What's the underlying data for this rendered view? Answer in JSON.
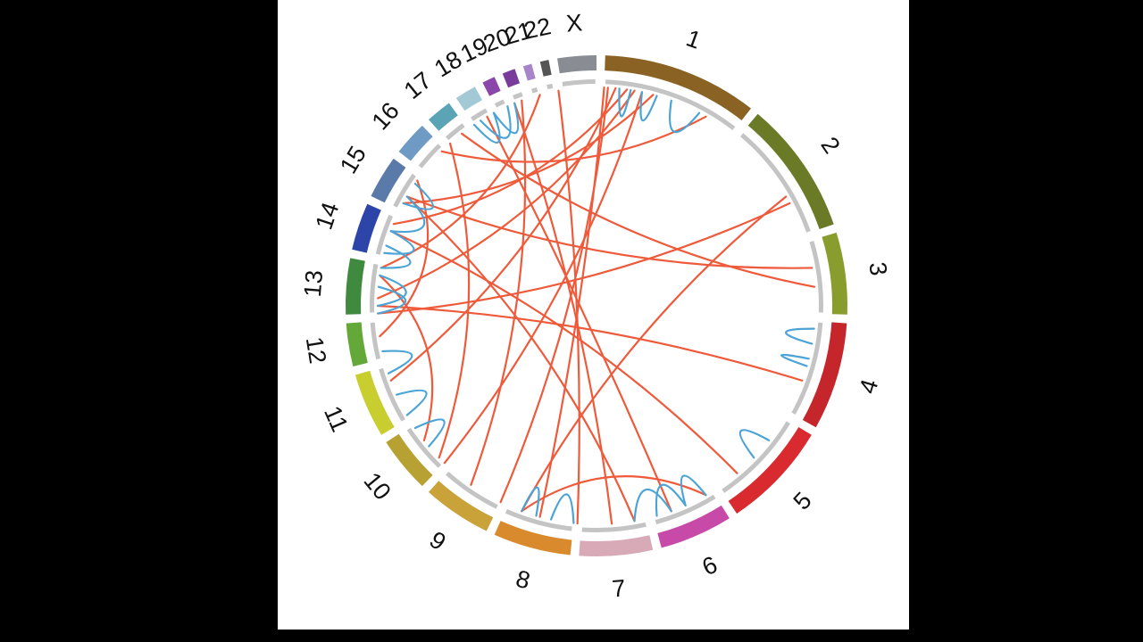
{
  "colors": {
    "page_background": "#000000",
    "panel_background": "#ffffff",
    "inner_track": "#c4c4c4",
    "link_translocation": "#ee5a3a",
    "link_rearrangement": "#4ba3d6"
  },
  "chromosomes": [
    {
      "id": "1",
      "label": "1",
      "start_deg": 2,
      "end_deg": 38,
      "color": "#8a6224"
    },
    {
      "id": "2",
      "label": "2",
      "start_deg": 40,
      "end_deg": 71,
      "color": "#6b7a26"
    },
    {
      "id": "3",
      "label": "3",
      "start_deg": 73,
      "end_deg": 92,
      "color": "#899c2e"
    },
    {
      "id": "4",
      "label": "4",
      "start_deg": 94,
      "end_deg": 119,
      "color": "#c4262b"
    },
    {
      "id": "5",
      "label": "5",
      "start_deg": 121,
      "end_deg": 146,
      "color": "#d92a2f"
    },
    {
      "id": "6",
      "label": "6",
      "start_deg": 148,
      "end_deg": 165,
      "color": "#c84aa8"
    },
    {
      "id": "7",
      "label": "7",
      "start_deg": 167,
      "end_deg": 184,
      "color": "#d8aab8"
    },
    {
      "id": "8",
      "label": "8",
      "start_deg": 186,
      "end_deg": 204,
      "color": "#d98a2c"
    },
    {
      "id": "9",
      "label": "9",
      "start_deg": 206,
      "end_deg": 222,
      "color": "#c9a23a"
    },
    {
      "id": "10",
      "label": "10",
      "start_deg": 224,
      "end_deg": 237,
      "color": "#b7a133"
    },
    {
      "id": "11",
      "label": "11",
      "start_deg": 239,
      "end_deg": 254,
      "color": "#c8cd30"
    },
    {
      "id": "12",
      "label": "12",
      "start_deg": 256,
      "end_deg": 266,
      "color": "#64a83a"
    },
    {
      "id": "13",
      "label": "13",
      "start_deg": 268,
      "end_deg": 281,
      "color": "#3f8a3e"
    },
    {
      "id": "14",
      "label": "14",
      "start_deg": 283,
      "end_deg": 294,
      "color": "#2d45a8"
    },
    {
      "id": "15",
      "label": "15",
      "start_deg": 296,
      "end_deg": 306,
      "color": "#5a7aaa"
    },
    {
      "id": "16",
      "label": "16",
      "start_deg": 308,
      "end_deg": 316,
      "color": "#6f9ac4"
    },
    {
      "id": "17",
      "label": "17",
      "start_deg": 318,
      "end_deg": 324,
      "color": "#5aa4b6"
    },
    {
      "id": "18",
      "label": "18",
      "start_deg": 326,
      "end_deg": 331,
      "color": "#a3c8d6"
    },
    {
      "id": "19",
      "label": "19",
      "start_deg": 333,
      "end_deg": 336,
      "color": "#8a46a8"
    },
    {
      "id": "20",
      "label": "20",
      "start_deg": 338,
      "end_deg": 341,
      "color": "#7a3c9a"
    },
    {
      "id": "21",
      "label": "21",
      "start_deg": 343,
      "end_deg": 345,
      "color": "#a884c8"
    },
    {
      "id": "22",
      "label": "22",
      "start_deg": 347,
      "end_deg": 349,
      "color": "#555555"
    },
    {
      "id": "X",
      "label": "X",
      "start_deg": 351,
      "end_deg": 360,
      "color": "#8a8c94"
    }
  ],
  "links": [
    {
      "type": "translocation",
      "from_deg": 2,
      "to_deg": 195
    },
    {
      "type": "translocation",
      "from_deg": 3,
      "to_deg": 206
    },
    {
      "type": "translocation",
      "from_deg": 5,
      "to_deg": 250
    },
    {
      "type": "translocation",
      "from_deg": 8,
      "to_deg": 292
    },
    {
      "type": "translocation",
      "from_deg": 10,
      "to_deg": 272
    },
    {
      "type": "translocation",
      "from_deg": 12,
      "to_deg": 224
    },
    {
      "type": "translocation",
      "from_deg": 62,
      "to_deg": 268
    },
    {
      "type": "translocation",
      "from_deg": 80,
      "to_deg": 300
    },
    {
      "type": "translocation",
      "from_deg": 85,
      "to_deg": 322
    },
    {
      "type": "translocation",
      "from_deg": 140,
      "to_deg": 290
    },
    {
      "type": "translocation",
      "from_deg": 150,
      "to_deg": 200
    },
    {
      "type": "translocation",
      "from_deg": 160,
      "to_deg": 330
    },
    {
      "type": "translocation",
      "from_deg": 170,
      "to_deg": 300
    },
    {
      "type": "translocation",
      "from_deg": 176,
      "to_deg": 338
    },
    {
      "type": "translocation",
      "from_deg": 185,
      "to_deg": 350
    },
    {
      "type": "translocation",
      "from_deg": 215,
      "to_deg": 340
    },
    {
      "type": "translocation",
      "from_deg": 226,
      "to_deg": 318
    },
    {
      "type": "translocation",
      "from_deg": 232,
      "to_deg": 278
    },
    {
      "type": "translocation",
      "from_deg": 262,
      "to_deg": 305
    },
    {
      "type": "translocation",
      "from_deg": 280,
      "to_deg": 345
    },
    {
      "type": "translocation",
      "from_deg": 298,
      "to_deg": 15
    },
    {
      "type": "translocation",
      "from_deg": 315,
      "to_deg": 30
    },
    {
      "type": "translocation",
      "from_deg": 270,
      "to_deg": 110
    },
    {
      "type": "translocation",
      "from_deg": 200,
      "to_deg": 60
    },
    {
      "type": "rearrangement",
      "from_deg": 6,
      "to_deg": 9
    },
    {
      "type": "rearrangement",
      "from_deg": 12,
      "to_deg": 16
    },
    {
      "type": "rearrangement",
      "from_deg": 20,
      "to_deg": 28
    },
    {
      "type": "rearrangement",
      "from_deg": 96,
      "to_deg": 100
    },
    {
      "type": "rearrangement",
      "from_deg": 104,
      "to_deg": 106
    },
    {
      "type": "rearrangement",
      "from_deg": 128,
      "to_deg": 134
    },
    {
      "type": "rearrangement",
      "from_deg": 150,
      "to_deg": 156
    },
    {
      "type": "rearrangement",
      "from_deg": 156,
      "to_deg": 164
    },
    {
      "type": "rearrangement",
      "from_deg": 160,
      "to_deg": 170
    },
    {
      "type": "rearrangement",
      "from_deg": 186,
      "to_deg": 192
    },
    {
      "type": "rearrangement",
      "from_deg": 196,
      "to_deg": 200
    },
    {
      "type": "rearrangement",
      "from_deg": 230,
      "to_deg": 236
    },
    {
      "type": "rearrangement",
      "from_deg": 240,
      "to_deg": 246
    },
    {
      "type": "rearrangement",
      "from_deg": 252,
      "to_deg": 258
    },
    {
      "type": "rearrangement",
      "from_deg": 268,
      "to_deg": 275
    },
    {
      "type": "rearrangement",
      "from_deg": 270,
      "to_deg": 278
    },
    {
      "type": "rearrangement",
      "from_deg": 280,
      "to_deg": 286
    },
    {
      "type": "rearrangement",
      "from_deg": 284,
      "to_deg": 290
    },
    {
      "type": "rearrangement",
      "from_deg": 290,
      "to_deg": 300
    },
    {
      "type": "rearrangement",
      "from_deg": 298,
      "to_deg": 304
    },
    {
      "type": "rearrangement",
      "from_deg": 326,
      "to_deg": 332
    },
    {
      "type": "rearrangement",
      "from_deg": 328,
      "to_deg": 336
    },
    {
      "type": "rearrangement",
      "from_deg": 332,
      "to_deg": 338
    }
  ]
}
